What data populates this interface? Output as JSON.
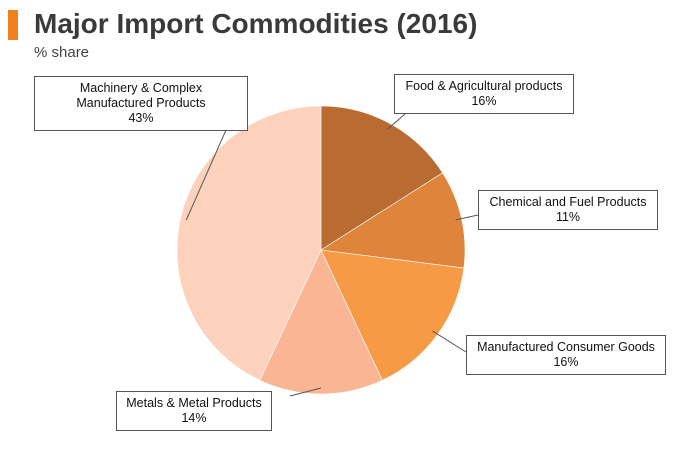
{
  "header": {
    "title": "Major Import Commodities (2016)",
    "subtitle": "% share",
    "accent_color": "#f07f1d"
  },
  "chart_data": {
    "type": "pie",
    "title": "Major Import Commodities (2016)",
    "subtitle": "% share",
    "slices": [
      {
        "label": "Food & Agricultural products",
        "value": 16,
        "value_label": "16%",
        "color": "#b96b32"
      },
      {
        "label": "Chemical and Fuel Products",
        "value": 11,
        "value_label": "11%",
        "color": "#de843b"
      },
      {
        "label": "Manufactured Consumer Goods",
        "value": 16,
        "value_label": "16%",
        "color": "#f79a46"
      },
      {
        "label": "Metals & Metal Products",
        "value": 14,
        "value_label": "14%",
        "color": "#f9b594"
      },
      {
        "label": "Machinery & Complex Manufactured Products",
        "label_lines": [
          "Machinery & Complex",
          "Manufactured Products"
        ],
        "value": 43,
        "value_label": "43%",
        "color": "#fcd2bc"
      }
    ]
  }
}
